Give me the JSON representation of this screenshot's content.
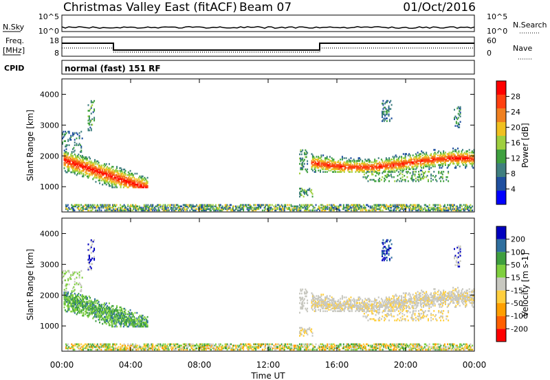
{
  "header": {
    "title": "Christmas Valley East (fitACF)",
    "beam": "Beam 07",
    "date": "01/Oct/2016"
  },
  "status_panels": {
    "nsky_label": "N.Sky",
    "nsky_ticks": [
      "10^5",
      "10^0"
    ],
    "nsearch_label": "N.Search",
    "nsearch_ticks": [
      "10^5",
      "10^0"
    ],
    "freq_label": "Freq.",
    "freq_unit": "[MHz]",
    "freq_ticks": [
      "18",
      "8"
    ],
    "nave_label": "Nave",
    "nave_ticks": [
      "60",
      "0"
    ],
    "cpid_label": "CPID",
    "cpid_value": "normal (fast) 151 RF"
  },
  "colors": {
    "power_scale": [
      "#0000ff",
      "#1f4f9f",
      "#3f7f7f",
      "#3fa03f",
      "#9fcf3f",
      "#f0c020",
      "#f08020",
      "#ff4010",
      "#ff0000"
    ],
    "velocity_scale": [
      "#ff0000",
      "#ff6000",
      "#ff9f00",
      "#ffcf3f",
      "#c8c8c0",
      "#7fcf3f",
      "#3f9f3f",
      "#2f6f9f",
      "#0000bf"
    ]
  },
  "chart_data": [
    {
      "type": "heatmap",
      "title": "Power",
      "ylabel": "Slant Range [km]",
      "xlabel": "Time UT",
      "x_ticks": [
        "00:00",
        "04:00",
        "08:00",
        "12:00",
        "16:00",
        "20:00",
        "00:00"
      ],
      "y_ticks": [
        "1000",
        "2000",
        "3000",
        "4000"
      ],
      "ylim": [
        180,
        4500
      ],
      "colorbar_label": "Power [dB]",
      "colorbar_ticks": [
        "4",
        "8",
        "12",
        "16",
        "20",
        "24",
        "28"
      ],
      "colorbar_range": [
        0,
        30
      ]
    },
    {
      "type": "heatmap",
      "title": "Velocity",
      "ylabel": "Slant Range [km]",
      "xlabel": "Time UT",
      "x_ticks": [
        "00:00",
        "04:00",
        "08:00",
        "12:00",
        "16:00",
        "20:00",
        "00:00"
      ],
      "y_ticks": [
        "1000",
        "2000",
        "3000",
        "4000"
      ],
      "ylim": [
        180,
        4500
      ],
      "colorbar_label": "Velocity [m s-1]",
      "colorbar_ticks": [
        "-200",
        "-100",
        "-50",
        "-15",
        "15",
        "50",
        "100",
        "200"
      ],
      "colorbar_range": [
        -250,
        250
      ]
    }
  ]
}
